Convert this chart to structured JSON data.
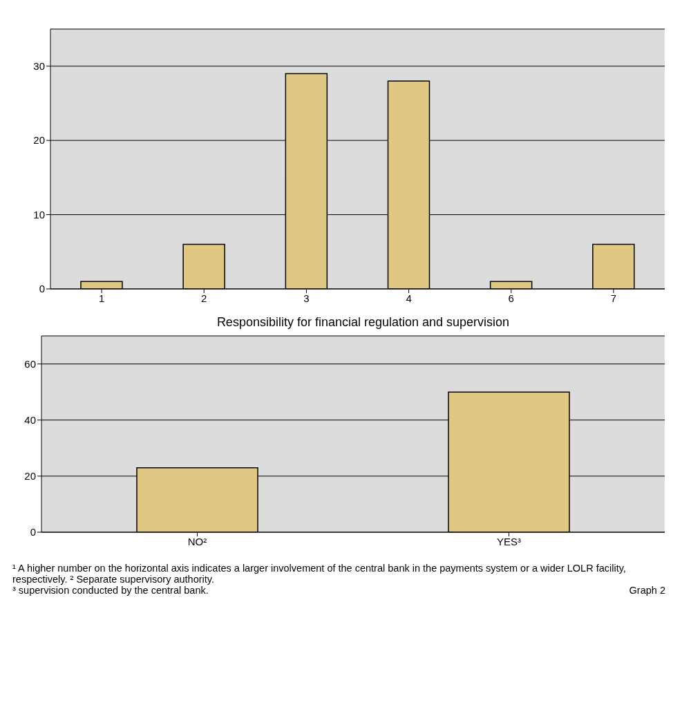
{
  "chart_data": [
    {
      "type": "bar",
      "categories": [
        "1",
        "2",
        "3",
        "4",
        "6",
        "7"
      ],
      "values": [
        1,
        6,
        29,
        28,
        1,
        6
      ],
      "color": "#e0c882",
      "ylim": [
        0,
        35
      ],
      "yticks": [
        0,
        10,
        20,
        30
      ],
      "grid": "y"
    },
    {
      "type": "bar",
      "title": "Responsibility for financial regulation and supervision",
      "categories": [
        "NO²",
        "YES³"
      ],
      "values": [
        23,
        50
      ],
      "color": "#e0c882",
      "ylim": [
        0,
        70
      ],
      "yticks": [
        0,
        20,
        40,
        60
      ],
      "grid": "y",
      "annotations": [
        "¹ A higher number on the horizontal axis indicates a larger involvement of the central bank in the payments system or a wider LOLR facility, respectively.  ² Separate supervisory authority.",
        "³ supervision conducted by the central bank.",
        "Graph 2"
      ]
    }
  ]
}
